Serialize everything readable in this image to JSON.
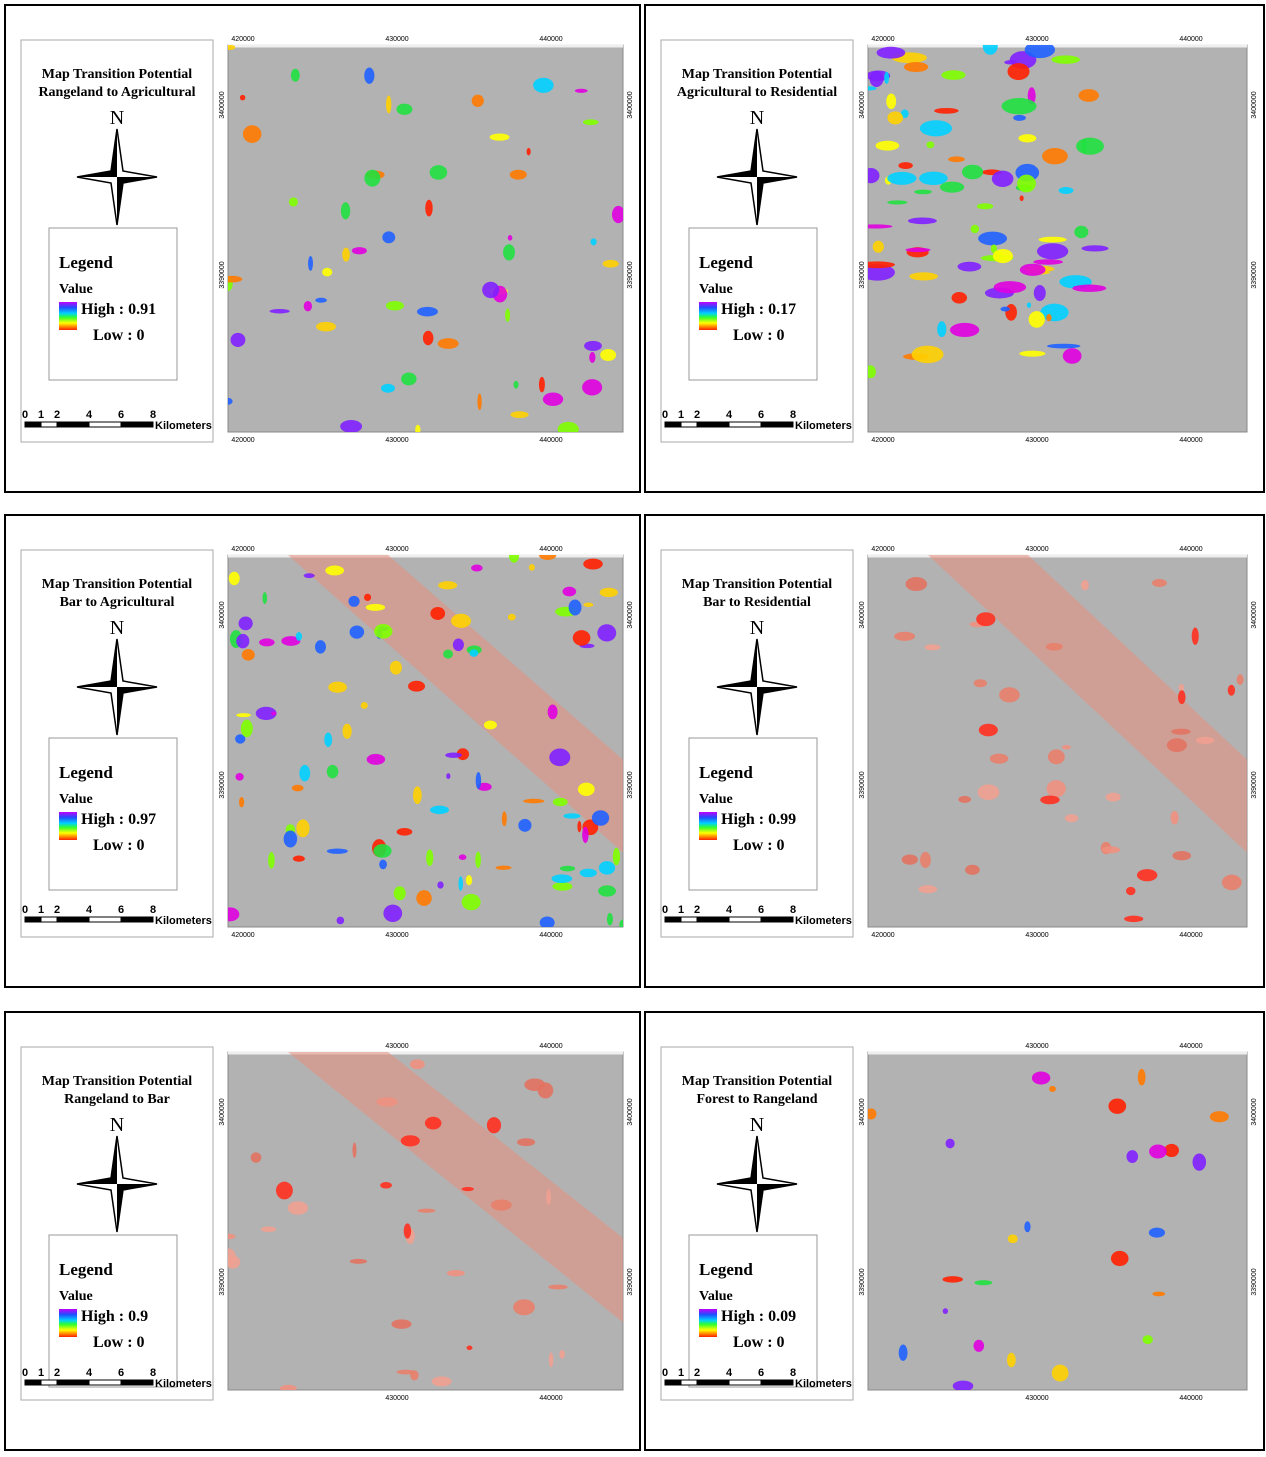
{
  "panels": [
    {
      "title": [
        "Map Transition Potential",
        "Rangeland to Agricultural"
      ],
      "north": "N",
      "legend": {
        "title": "Legend",
        "subtitle": "Value",
        "high": "High : 0.91",
        "low": "Low : 0"
      },
      "scale": [
        "0",
        "1",
        "2",
        "4",
        "6",
        "8"
      ],
      "scale_unit": "Kilometers",
      "xticks": [
        420000,
        430000,
        440000
      ],
      "yticks": [
        3400000,
        3390000
      ]
    },
    {
      "title": [
        "Map Transition Potential",
        "Agricultural to Residential"
      ],
      "north": "N",
      "legend": {
        "title": "Legend",
        "subtitle": "Value",
        "high": "High : 0.17",
        "low": "Low : 0"
      },
      "scale": [
        "0",
        "1",
        "2",
        "4",
        "6",
        "8"
      ],
      "scale_unit": "Kilometers",
      "xticks": [
        420000,
        430000,
        440000
      ],
      "yticks": [
        3400000,
        3390000
      ]
    },
    {
      "title": [
        "Map Transition Potential",
        "Bar  to Agricultural"
      ],
      "north": "N",
      "legend": {
        "title": "Legend",
        "subtitle": "Value",
        "high": "High : 0.97",
        "low": "Low : 0"
      },
      "scale": [
        "0",
        "1",
        "2",
        "4",
        "6",
        "8"
      ],
      "scale_unit": "Kilometers",
      "xticks": [
        420000,
        430000,
        440000
      ],
      "yticks": [
        3400000,
        3390000
      ]
    },
    {
      "title": [
        "Map Transition Potential",
        "Bar  to Residential"
      ],
      "north": "N",
      "legend": {
        "title": "Legend",
        "subtitle": "Value",
        "high": "High : 0.99",
        "low": "Low : 0"
      },
      "scale": [
        "0",
        "1",
        "2",
        "4",
        "6",
        "8"
      ],
      "scale_unit": "Kilometers",
      "xticks": [
        420000,
        430000,
        440000
      ],
      "yticks": [
        3400000,
        3390000
      ]
    },
    {
      "title": [
        "Map Transition Potential",
        "Rangeland  to Bar"
      ],
      "north": "N",
      "legend": {
        "title": "Legend",
        "subtitle": "Value",
        "high": "High : 0.9",
        "low": "Low : 0"
      },
      "scale": [
        "0",
        "1",
        "2",
        "4",
        "6",
        "8"
      ],
      "scale_unit": "Kilometers",
      "xticks": [
        430000,
        440000
      ],
      "yticks": [
        3400000,
        3390000
      ]
    },
    {
      "title": [
        "Map Transition Potential",
        "Forest  to Rangeland"
      ],
      "north": "N",
      "legend": {
        "title": "Legend",
        "subtitle": "Value",
        "high": "High : 0.09",
        "low": "Low : 0"
      },
      "scale": [
        "0",
        "1",
        "2",
        "4",
        "6",
        "8"
      ],
      "scale_unit": "Kilometers",
      "xticks": [
        430000,
        440000
      ],
      "yticks": [
        3400000,
        3390000
      ]
    }
  ]
}
